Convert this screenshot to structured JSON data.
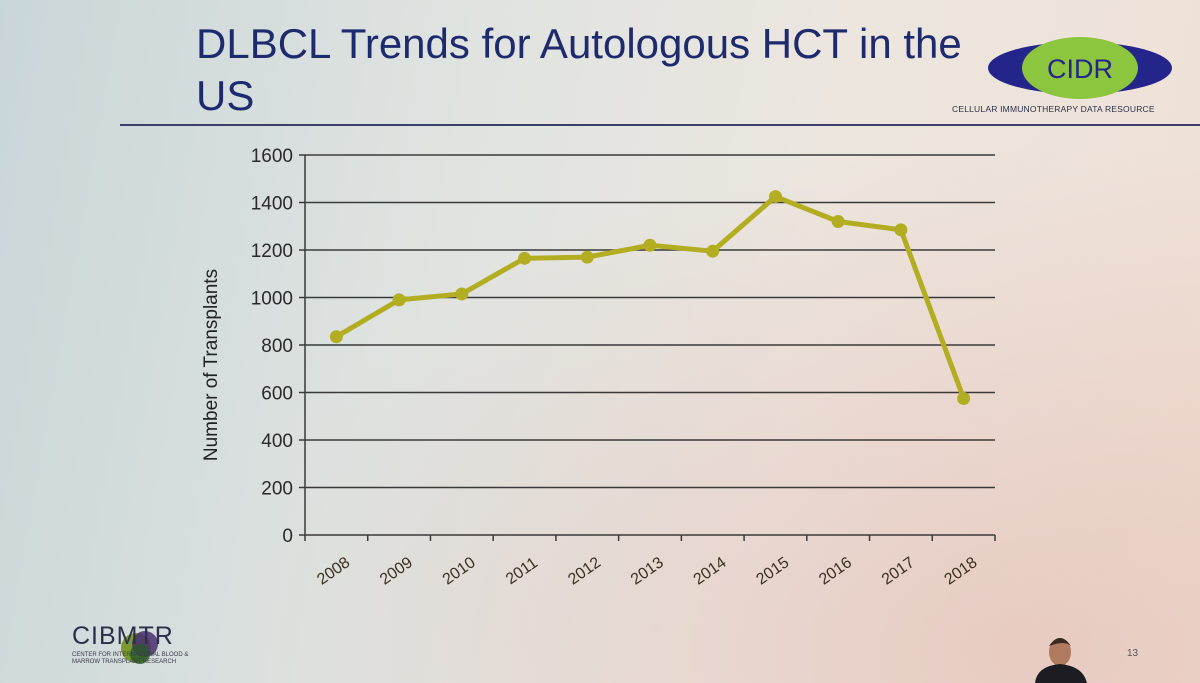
{
  "slide": {
    "title": "DLBCL Trends for Autologous HCT in the US",
    "page_number": "13"
  },
  "logos": {
    "cidr": {
      "name": "CIDR",
      "tagline": "CELLULAR IMMUNOTHERAPY DATA RESOURCE"
    },
    "cibmtr": {
      "name": "CIBMTR",
      "tagline": "CENTER FOR INTERNATIONAL BLOOD & MARROW TRANSPLANT RESEARCH"
    }
  },
  "colors": {
    "series": "#b3ad22",
    "title": "#1d2a6e",
    "grid": "#3a3a3a"
  },
  "chart_data": {
    "type": "line",
    "title": "",
    "xlabel": "",
    "ylabel": "Number of Transplants",
    "x": [
      "2008",
      "2009",
      "2010",
      "2011",
      "2012",
      "2013",
      "2014",
      "2015",
      "2016",
      "2017",
      "2018"
    ],
    "series": [
      {
        "values": [
          835,
          990,
          1015,
          1165,
          1170,
          1220,
          1195,
          1425,
          1320,
          1285,
          575
        ]
      }
    ],
    "ylim": [
      0,
      1600
    ],
    "yticks": [
      0,
      200,
      400,
      600,
      800,
      1000,
      1200,
      1400,
      1600
    ],
    "grid": true,
    "legend": false
  }
}
